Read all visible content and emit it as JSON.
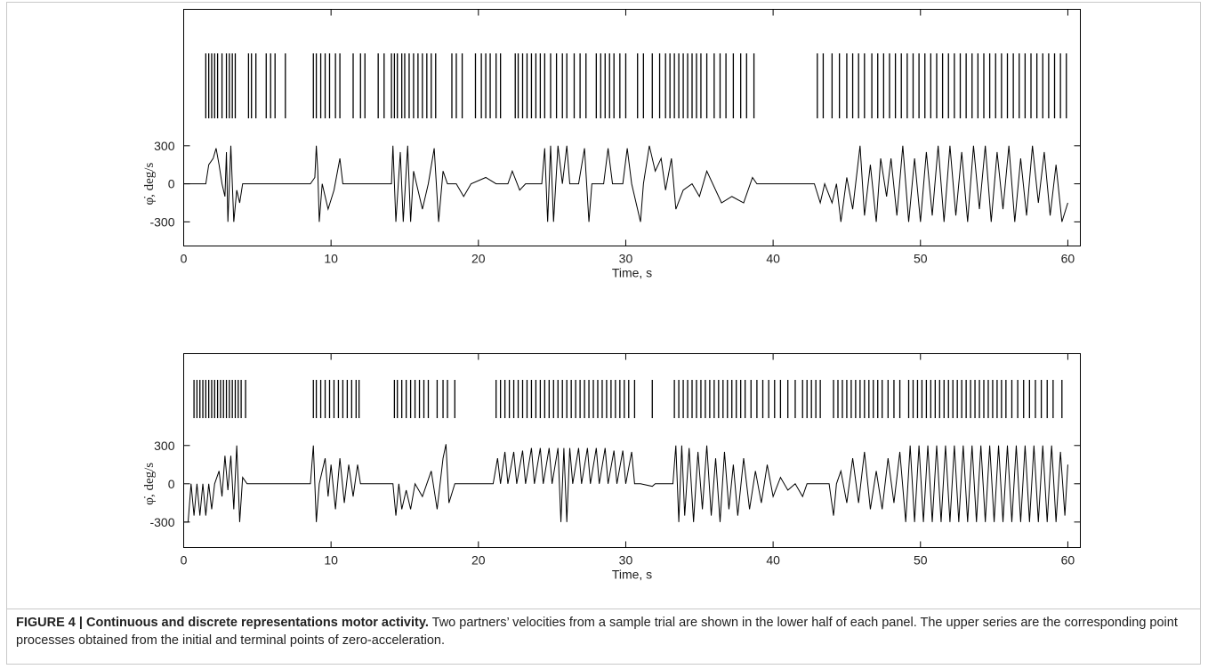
{
  "chart_data": [
    {
      "type": "line",
      "color": "#000000",
      "xlabel": "Time, s",
      "ylabel": "φ̇, deg/s",
      "xlim": [
        0,
        60.85
      ],
      "ylim": [
        -490,
        1375
      ],
      "xticks": [
        0,
        10,
        20,
        30,
        40,
        50,
        60
      ],
      "yticks": [
        -300,
        0,
        300
      ],
      "x": [
        0,
        1.5,
        1.7,
        2.0,
        2.2,
        2.4,
        2.6,
        2.8,
        2.9,
        3.0,
        3.2,
        3.4,
        3.6,
        3.8,
        4.0,
        5,
        8.6,
        8.9,
        9.0,
        9.1,
        9.2,
        9.4,
        9.8,
        10.2,
        10.6,
        10.8,
        14.1,
        14.2,
        14.4,
        14.7,
        14.9,
        15.2,
        15.4,
        15.6,
        16.2,
        16.6,
        17.0,
        17.3,
        17.6,
        17.9,
        18.5,
        19.0,
        19.5,
        20.5,
        21.2,
        22,
        22.3,
        22.8,
        23.2,
        24.3,
        24.5,
        24.7,
        24.9,
        25.1,
        25.4,
        25.7,
        26.0,
        26.2,
        26.8,
        27.2,
        27.5,
        27.7,
        28.5,
        28.8,
        29.1,
        29.8,
        30.1,
        30.4,
        31.0,
        31.2,
        31.6,
        32.0,
        32.4,
        32.7,
        33.1,
        33.4,
        33.9,
        34.5,
        35.0,
        35.5,
        36.5,
        37.2,
        38.0,
        38.6,
        38.9,
        42.8,
        43.2,
        43.5,
        44.0,
        44.3,
        44.6,
        45.0,
        45.4,
        45.9,
        46.2,
        46.6,
        47.0,
        47.3,
        47.7,
        48.0,
        48.4,
        48.8,
        49.2,
        49.6,
        50.0,
        50.4,
        50.8,
        51.2,
        51.6,
        52.0,
        52.4,
        52.8,
        53.2,
        53.6,
        54.0,
        54.4,
        54.8,
        55.2,
        55.6,
        56.0,
        56.4,
        56.8,
        57.2,
        57.6,
        58.0,
        58.4,
        58.8,
        59.2,
        59.6,
        60.0
      ],
      "values": [
        0,
        0,
        150,
        200,
        280,
        150,
        0,
        -100,
        250,
        -300,
        300,
        -300,
        -50,
        -150,
        0,
        0,
        0,
        50,
        300,
        100,
        -300,
        0,
        -200,
        -50,
        200,
        0,
        0,
        300,
        -300,
        250,
        -300,
        300,
        -300,
        100,
        -200,
        0,
        280,
        -300,
        100,
        0,
        0,
        -100,
        0,
        50,
        0,
        0,
        100,
        -50,
        0,
        0,
        280,
        -300,
        300,
        -300,
        300,
        0,
        300,
        0,
        0,
        280,
        -300,
        0,
        0,
        280,
        0,
        0,
        280,
        0,
        -300,
        0,
        300,
        100,
        200,
        -50,
        200,
        -200,
        -50,
        0,
        -100,
        100,
        -150,
        -100,
        -150,
        50,
        0,
        0,
        -150,
        0,
        -150,
        0,
        -300,
        50,
        -200,
        300,
        -250,
        150,
        -300,
        200,
        -100,
        200,
        -250,
        300,
        -300,
        200,
        -300,
        250,
        -250,
        300,
        -300,
        300,
        -250,
        250,
        -300,
        300,
        -200,
        300,
        -300,
        250,
        -200,
        300,
        -300,
        200,
        -250,
        300,
        -150,
        250,
        -250,
        150,
        -300,
        -150
      ],
      "events": [
        1.5,
        1.7,
        1.9,
        2.1,
        2.3,
        2.6,
        2.9,
        3.1,
        3.3,
        3.5,
        4.4,
        4.6,
        4.9,
        5.6,
        5.9,
        6.2,
        6.9,
        8.8,
        9.0,
        9.3,
        9.6,
        9.9,
        10.3,
        10.6,
        11.5,
        12.0,
        12.3,
        13.2,
        13.6,
        14.1,
        14.3,
        14.5,
        14.8,
        15.0,
        15.3,
        15.6,
        15.9,
        16.2,
        16.5,
        16.8,
        17.1,
        18.2,
        18.5,
        18.9,
        19.8,
        20.2,
        20.5,
        20.8,
        21.2,
        21.5,
        22.5,
        22.7,
        23.0,
        23.3,
        23.6,
        23.9,
        24.2,
        24.5,
        24.9,
        25.3,
        25.7,
        26.0,
        26.5,
        26.9,
        27.3,
        28.0,
        28.3,
        28.6,
        28.9,
        29.2,
        29.6,
        30.0,
        30.8,
        31.2,
        31.8,
        32.3,
        32.7,
        33.0,
        33.3,
        33.6,
        33.9,
        34.2,
        34.5,
        34.8,
        35.1,
        35.5,
        36.0,
        36.4,
        36.8,
        37.3,
        37.8,
        38.2,
        38.7,
        43.0,
        43.4,
        44.0,
        44.5,
        45.0,
        45.4,
        45.8,
        46.2,
        46.7,
        47.1,
        47.5,
        47.9,
        48.3,
        48.7,
        49.1,
        49.5,
        49.9,
        50.3,
        50.7,
        51.1,
        51.5,
        51.9,
        52.3,
        52.7,
        53.1,
        53.5,
        53.9,
        54.3,
        54.7,
        55.1,
        55.5,
        55.9,
        56.3,
        56.7,
        57.1,
        57.5,
        57.9,
        58.3,
        58.7,
        59.1,
        59.5,
        59.9
      ]
    },
    {
      "type": "line",
      "color": "#000000",
      "xlabel": "Time, s",
      "ylabel": "φ̇, deg/s",
      "xlim": [
        0,
        60.85
      ],
      "ylim": [
        -500,
        1020
      ],
      "xticks": [
        0,
        10,
        20,
        30,
        40,
        50,
        60
      ],
      "yticks": [
        -300,
        0,
        300
      ],
      "x": [
        0,
        0.3,
        0.5,
        0.7,
        0.9,
        1.1,
        1.3,
        1.5,
        1.7,
        1.9,
        2.1,
        2.4,
        2.6,
        2.8,
        3.0,
        3.2,
        3.4,
        3.6,
        3.8,
        4.0,
        4.3,
        8.6,
        8.8,
        9.0,
        9.2,
        9.6,
        9.8,
        10.0,
        10.3,
        10.6,
        10.9,
        11.2,
        11.5,
        11.8,
        12.0,
        14.2,
        14.4,
        14.6,
        14.8,
        15.1,
        15.4,
        15.7,
        16.2,
        16.8,
        17.2,
        17.6,
        17.8,
        18.0,
        18.4,
        21.0,
        21.3,
        21.5,
        21.8,
        22.0,
        22.4,
        22.6,
        23.0,
        23.2,
        23.6,
        23.8,
        24.2,
        24.4,
        24.8,
        25.0,
        25.4,
        25.6,
        25.8,
        26.0,
        26.2,
        26.4,
        26.8,
        27.0,
        27.4,
        27.6,
        28.0,
        28.2,
        28.6,
        28.8,
        29.2,
        29.4,
        29.8,
        30.0,
        30.4,
        30.6,
        31.0,
        31.8,
        32.0,
        33.2,
        33.4,
        33.6,
        33.8,
        34.0,
        34.3,
        34.6,
        34.9,
        35.2,
        35.5,
        35.8,
        36.1,
        36.4,
        36.7,
        37.0,
        37.3,
        37.6,
        38.0,
        38.4,
        38.8,
        39.2,
        39.6,
        40.0,
        40.5,
        41.0,
        41.5,
        42.0,
        42.3,
        43.8,
        44.1,
        44.3,
        44.6,
        45.0,
        45.4,
        45.8,
        46.2,
        46.6,
        47.0,
        47.4,
        47.8,
        48.2,
        48.6,
        49.0,
        49.3,
        49.6,
        49.9,
        50.2,
        50.5,
        50.8,
        51.1,
        51.4,
        51.7,
        52.0,
        52.3,
        52.6,
        52.9,
        53.2,
        53.5,
        53.8,
        54.1,
        54.4,
        54.7,
        55.0,
        55.3,
        55.6,
        55.9,
        56.2,
        56.5,
        56.8,
        57.1,
        57.4,
        57.7,
        58.0,
        58.3,
        58.6,
        58.9,
        59.2,
        59.5,
        59.8,
        60.0
      ],
      "values": [
        -300,
        -300,
        0,
        -250,
        0,
        -250,
        0,
        -250,
        0,
        -200,
        0,
        100,
        -100,
        220,
        -50,
        220,
        -200,
        300,
        -300,
        50,
        0,
        0,
        300,
        -300,
        0,
        200,
        -100,
        150,
        -200,
        200,
        -150,
        150,
        -100,
        150,
        0,
        0,
        -250,
        0,
        -200,
        -50,
        -200,
        0,
        -100,
        100,
        -200,
        200,
        310,
        -150,
        0,
        0,
        200,
        0,
        250,
        0,
        250,
        0,
        260,
        0,
        280,
        0,
        280,
        0,
        280,
        0,
        280,
        -300,
        280,
        -300,
        280,
        0,
        280,
        0,
        280,
        0,
        280,
        0,
        280,
        0,
        260,
        0,
        260,
        0,
        250,
        0,
        0,
        -20,
        0,
        0,
        300,
        -300,
        300,
        -250,
        280,
        -300,
        250,
        -200,
        300,
        -250,
        200,
        -300,
        250,
        -200,
        150,
        -250,
        200,
        -200,
        100,
        -150,
        150,
        -100,
        50,
        -50,
        0,
        -100,
        0,
        0,
        -250,
        0,
        100,
        -150,
        200,
        -150,
        250,
        -200,
        100,
        -200,
        200,
        -150,
        250,
        -300,
        300,
        -300,
        300,
        -300,
        300,
        -300,
        300,
        -300,
        300,
        -300,
        300,
        -300,
        300,
        -300,
        300,
        -300,
        300,
        -300,
        300,
        -300,
        300,
        -300,
        300,
        -300,
        300,
        -300,
        300,
        -300,
        300,
        -300,
        300,
        -300,
        300,
        -300,
        250,
        -250,
        150
      ],
      "events": [
        0.7,
        0.9,
        1.1,
        1.3,
        1.5,
        1.7,
        1.9,
        2.1,
        2.3,
        2.5,
        2.7,
        2.9,
        3.1,
        3.3,
        3.5,
        3.7,
        3.9,
        4.2,
        8.8,
        9.0,
        9.3,
        9.6,
        9.9,
        10.2,
        10.5,
        10.8,
        11.1,
        11.4,
        11.7,
        11.9,
        14.3,
        14.5,
        14.8,
        15.1,
        15.4,
        15.7,
        16.0,
        16.3,
        16.6,
        17.2,
        17.6,
        17.9,
        18.4,
        21.2,
        21.5,
        21.8,
        22.1,
        22.4,
        22.7,
        23.0,
        23.3,
        23.6,
        23.9,
        24.2,
        24.5,
        24.8,
        25.1,
        25.4,
        25.7,
        26.0,
        26.3,
        26.6,
        26.9,
        27.2,
        27.5,
        27.8,
        28.1,
        28.4,
        28.7,
        29.0,
        29.3,
        29.6,
        29.9,
        30.2,
        30.6,
        31.8,
        33.3,
        33.6,
        33.9,
        34.2,
        34.5,
        34.8,
        35.1,
        35.4,
        35.7,
        36.0,
        36.3,
        36.6,
        36.9,
        37.2,
        37.5,
        37.8,
        38.1,
        38.5,
        38.9,
        39.3,
        39.7,
        40.1,
        40.5,
        41.0,
        41.5,
        42.0,
        42.3,
        42.6,
        42.9,
        43.2,
        44.1,
        44.4,
        44.7,
        45.0,
        45.3,
        45.6,
        45.9,
        46.2,
        46.5,
        46.8,
        47.1,
        47.4,
        47.8,
        48.2,
        48.6,
        49.2,
        49.5,
        49.8,
        50.1,
        50.4,
        50.7,
        51.0,
        51.3,
        51.6,
        51.9,
        52.2,
        52.5,
        52.8,
        53.1,
        53.4,
        53.7,
        54.0,
        54.3,
        54.6,
        54.9,
        55.2,
        55.5,
        55.8,
        56.2,
        56.6,
        57.0,
        57.4,
        57.8,
        58.2,
        58.6,
        59.0,
        59.6
      ]
    }
  ],
  "caption": {
    "label": "FIGURE 4 | Continuous and discrete representations motor activity.",
    "text": "Two partners’ velocities from a sample trial are shown in the lower half of each panel. The upper series are the corresponding point processes obtained from the initial and terminal points of zero-acceleration."
  }
}
